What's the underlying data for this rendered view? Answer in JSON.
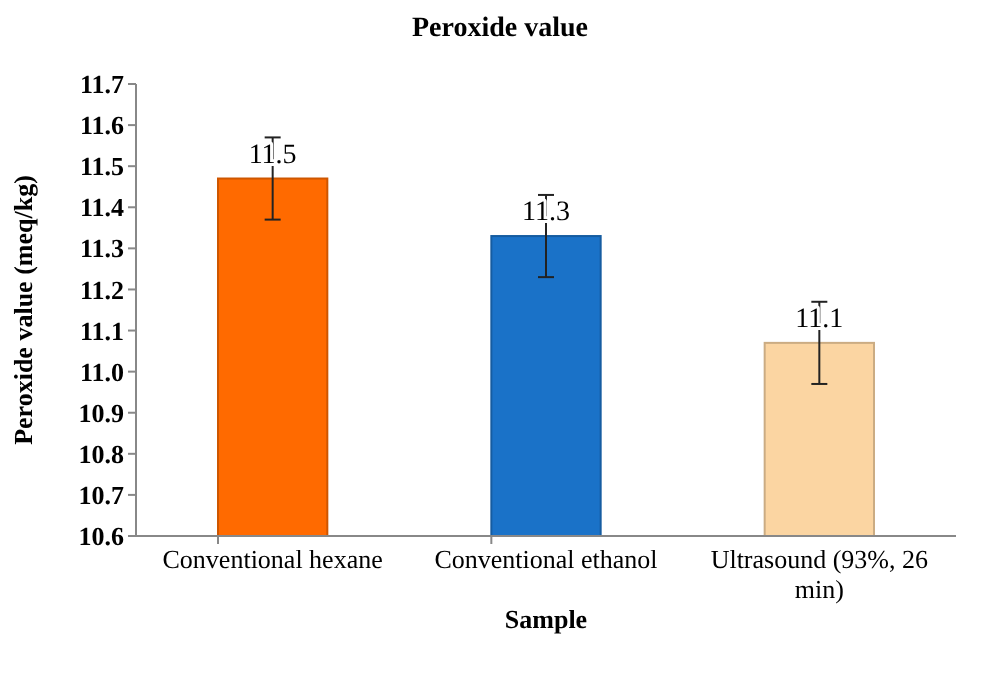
{
  "chart_data": {
    "type": "bar",
    "title": "Peroxide value",
    "xlabel": "Sample",
    "ylabel": "Peroxide value (meq/kg)",
    "categories": [
      "Conventional hexane",
      "Conventional ethanol",
      "Ultrasound (93%, 26 min)"
    ],
    "values": [
      11.47,
      11.33,
      11.07
    ],
    "colors": [
      "#ff6a00",
      "#1a72c8",
      "#fbd5a2"
    ],
    "errors": [
      0.1,
      0.1,
      0.1
    ],
    "value_labels": [
      "11.5",
      "11.3",
      "11.1"
    ],
    "ylim": [
      10.6,
      11.7
    ],
    "yticks": [
      {
        "value": 10.6,
        "label": "10.6"
      },
      {
        "value": 10.7,
        "label": "10.7"
      },
      {
        "value": 10.8,
        "label": "10.8"
      },
      {
        "value": 10.9,
        "label": "10.9"
      },
      {
        "value": 11.0,
        "label": "11.0"
      },
      {
        "value": 11.1,
        "label": "11.1"
      },
      {
        "value": 11.2,
        "label": "11.2"
      },
      {
        "value": 11.3,
        "label": "11.3"
      },
      {
        "value": 11.4,
        "label": "11.4"
      },
      {
        "value": 11.5,
        "label": "11.5"
      },
      {
        "value": 11.6,
        "label": "11.6"
      },
      {
        "value": 11.7,
        "label": "11.7"
      }
    ],
    "grid": false
  }
}
